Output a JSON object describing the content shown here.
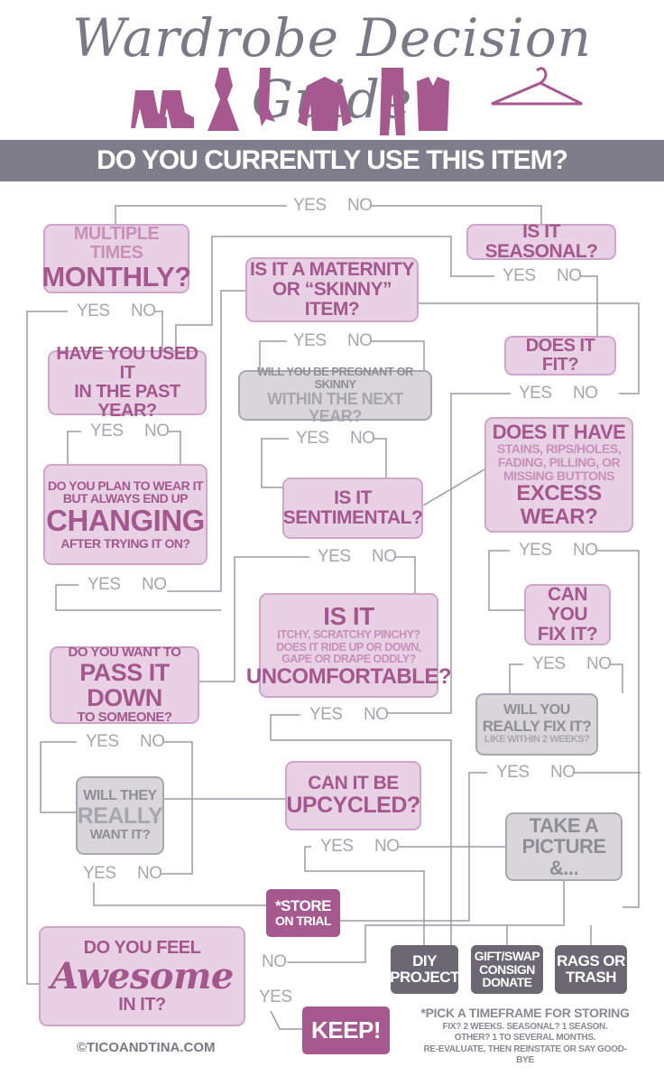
{
  "title": "Wardrobe Decision Guide",
  "banner": "DO YOU CURRENTLY USE THIS ITEM?",
  "icons": [
    "heels-icon",
    "dress-icon",
    "scarf-icon",
    "jacket-icon",
    "pants-icon",
    "top-icon",
    "hanger-icon"
  ],
  "yes": "YES",
  "no": "NO",
  "boxes": {
    "monthly": {
      "a": "MULTIPLE TIMES",
      "b": "MONTHLY?"
    },
    "seasonal": {
      "a": "IS IT SEASONAL?"
    },
    "maternity": {
      "a": "IS IT A MATERNITY",
      "b": "OR “SKINNY” ITEM?"
    },
    "fit": {
      "a": "DOES IT FIT?"
    },
    "pregnant": {
      "a": "WILL YOU BE PREGNANT OR SKINNY",
      "b": "WITHIN THE NEXT YEAR?"
    },
    "used": {
      "a": "HAVE YOU USED IT",
      "b": "IN THE PAST YEAR?"
    },
    "wear": {
      "a": "DOES IT HAVE",
      "b": "STAINS, RIPS/HOLES,",
      "c": "FADING, PILLING, OR",
      "d": "MISSING BUTTONS",
      "e": "EXCESS WEAR?"
    },
    "changing": {
      "a": "DO YOU PLAN TO WEAR IT",
      "b": "BUT ALWAYS END UP",
      "c": "CHANGING",
      "d": "AFTER TRYING IT ON?"
    },
    "sentimental": {
      "a": "IS IT",
      "b": "SENTIMENTAL?"
    },
    "fix": {
      "a": "CAN YOU",
      "b": "FIX IT?"
    },
    "uncomfortable": {
      "a": "IS IT",
      "b": "ITCHY, SCRATCHY PINCHY?",
      "c": "DOES IT RIDE UP OR DOWN,",
      "d": "GAPE OR DRAPE ODDLY?",
      "e": "UNCOMFORTABLE?"
    },
    "pass": {
      "a": "DO YOU WANT TO",
      "b": "PASS IT DOWN",
      "c": "TO SOMEONE?"
    },
    "reallyfix": {
      "a": "WILL YOU",
      "b": "REALLY FIX IT?",
      "c": "LIKE WITHIN 2 WEEKS?"
    },
    "upcycled": {
      "a": "CAN IT BE",
      "b": "UPCYCLED?"
    },
    "theywant": {
      "a": "WILL THEY",
      "b": "REALLY",
      "c": "WANT IT?"
    },
    "picture": {
      "a": "TAKE A",
      "b": "PICTURE &..."
    },
    "store": {
      "a": "*STORE",
      "b": "ON TRIAL"
    },
    "awesome": {
      "a": "DO YOU FEEL",
      "b": "Awesome",
      "c": "IN IT?"
    },
    "diy": {
      "a": "DIY",
      "b": "PROJECT"
    },
    "gift": {
      "a": "GIFT/SWAP",
      "b": "CONSIGN",
      "c": "DONATE"
    },
    "rags": {
      "a": "RAGS OR",
      "b": "TRASH"
    },
    "keep": {
      "a": "KEEP!"
    }
  },
  "footnote": {
    "title": "*PICK A TIMEFRAME FOR STORING",
    "l1": "FIX? 2 WEEKS. SEASONAL? 1 SEASON.",
    "l2": "OTHER? 1 TO SEVERAL MONTHS.",
    "l3": "RE-EVALUATE, THEN REINSTATE OR SAY GOOD-BYE"
  },
  "copyright": "©TICOANDTINA.COM",
  "colors": {
    "pink": "#a4578d",
    "pink_light": "#e8d1e5",
    "gray": "#7f7d8a",
    "dark": "#6b6874"
  }
}
